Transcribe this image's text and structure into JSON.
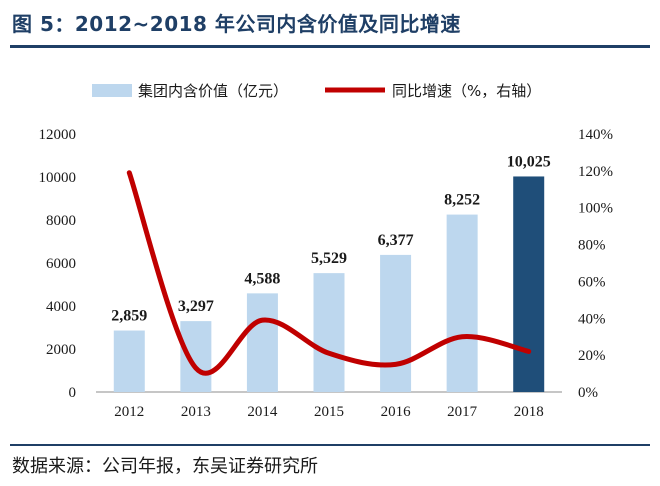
{
  "figure": {
    "title": "图 5：2012~2018 年公司内含价值及同比增速",
    "source": "数据来源：公司年报，东吴证券研究所"
  },
  "chart_data": {
    "type": "bar",
    "categories": [
      "2012",
      "2013",
      "2014",
      "2015",
      "2016",
      "2017",
      "2018"
    ],
    "series": [
      {
        "name": "集团内含价值（亿元）",
        "type": "bar",
        "axis": "left",
        "values": [
          2859,
          3297,
          4588,
          5529,
          6377,
          8252,
          10025
        ],
        "labels": [
          "2,859",
          "3,297",
          "4,588",
          "5,529",
          "6,377",
          "8,252",
          "10,025"
        ],
        "color": "#bdd7ee",
        "highlight_color": "#1f4e79"
      },
      {
        "name": "同比增速（%，右轴）",
        "type": "line",
        "axis": "right",
        "values": [
          119,
          13,
          39,
          21,
          15,
          30,
          22
        ],
        "color": "#c00000"
      }
    ],
    "y_left": {
      "ylim": [
        0,
        12000
      ],
      "ticks": [
        "0",
        "2000",
        "4000",
        "6000",
        "8000",
        "10000",
        "12000"
      ]
    },
    "y_right": {
      "ylim": [
        0,
        140
      ],
      "ticks": [
        "0%",
        "20%",
        "40%",
        "60%",
        "80%",
        "100%",
        "120%",
        "140%"
      ]
    },
    "grid": false,
    "legend_position": "top"
  }
}
